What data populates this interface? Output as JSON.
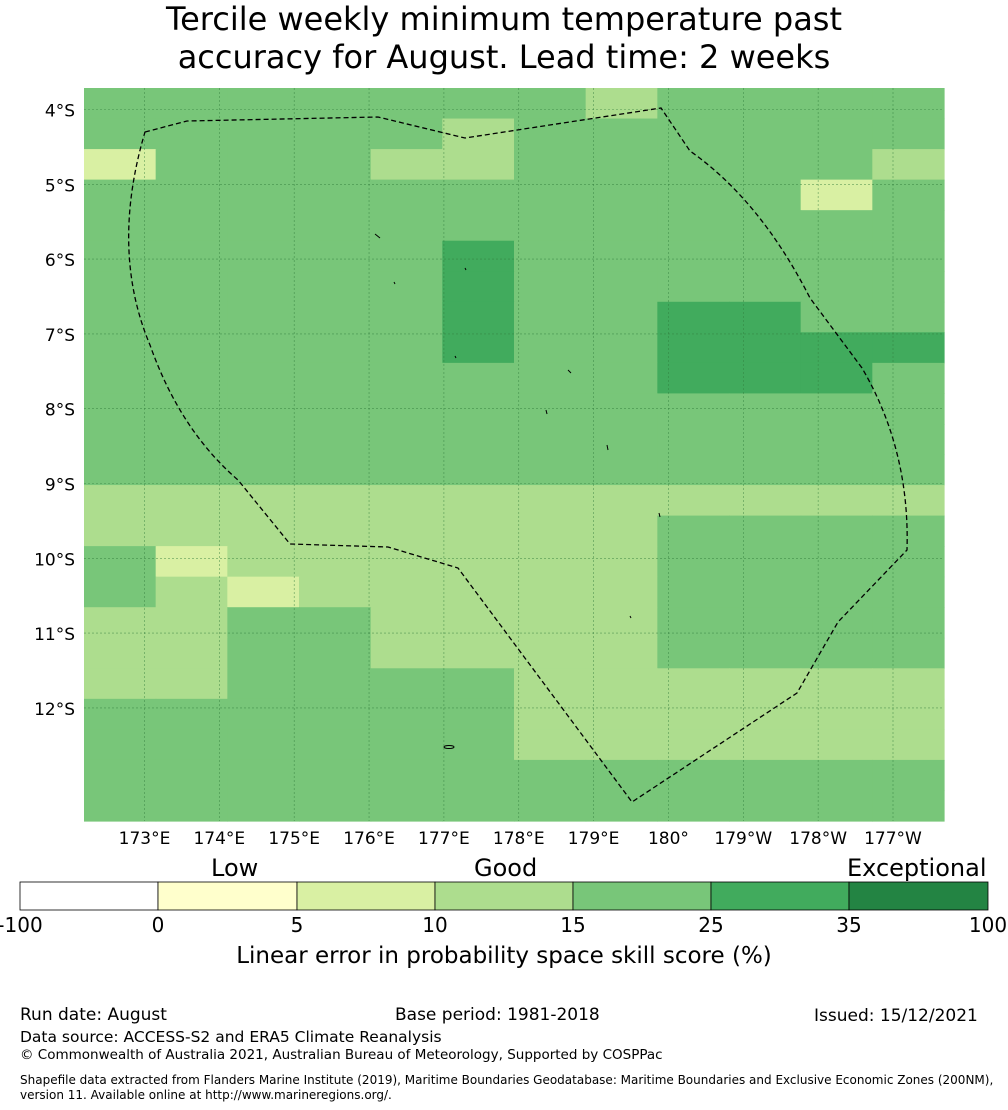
{
  "title": {
    "line1": "Tercile weekly minimum temperature past",
    "line2": "accuracy for August. Lead time: 2 weeks"
  },
  "map": {
    "lat_labels": [
      "4°S",
      "5°S",
      "6°S",
      "7°S",
      "8°S",
      "9°S",
      "10°S",
      "11°S",
      "12°S"
    ],
    "lon_labels": [
      "173°E",
      "174°E",
      "175°E",
      "176°E",
      "177°E",
      "178°E",
      "179°E",
      "180°",
      "179°W",
      "178°W",
      "177°W"
    ],
    "grid_rows": [
      "333333343333",
      "333334333333",
      "133344333334",
      "333333333313",
      "333333333333",
      "333335333333",
      "333335333333",
      "333335335533",
      "333335335555",
      "333333335553",
      "333333333333",
      "333333333333",
      "333333333333",
      "222222222222",
      "222222223333",
      "312222223333",
      "321222223333",
      "223322223333",
      "223322223333",
      "223333222222",
      "333333222222",
      "333333222222",
      "333333333333",
      "333333333333"
    ],
    "palette": {
      "0": "#ffffcc",
      "1": "#d9f0a3",
      "2": "#addd8e",
      "3": "#78c679",
      "4": "#addd8e",
      "5": "#41ab5d"
    }
  },
  "colorbar": {
    "categories": [
      "Low",
      "Good",
      "Exceptional"
    ],
    "ticks": [
      "-100",
      "0",
      "5",
      "10",
      "15",
      "25",
      "35",
      "100"
    ],
    "colors": [
      "#ffffff",
      "#ffffcc",
      "#d9f0a3",
      "#addd8e",
      "#78c679",
      "#41ab5d",
      "#238443"
    ],
    "label": "Linear error in probability space skill score (%)"
  },
  "footer": {
    "run_date": "Run date: August",
    "base_period": "Base period: 1981-2018",
    "issued": "Issued: 15/12/2021",
    "data_source": "Data source: ACCESS-S2 and ERA5 Climate Reanalysis",
    "copyright": "© Commonwealth of Australia 2021, Australian Bureau of Meteorology, Supported by COSPPac",
    "shapefile_line1": "Shapefile data extracted from Flanders Marine Institute (2019), Maritime Boundaries Geodatabase: Maritime Boundaries and Exclusive Economic Zones (200NM),",
    "shapefile_line2": "version 11. Available online at http://www.marineregions.org/."
  }
}
